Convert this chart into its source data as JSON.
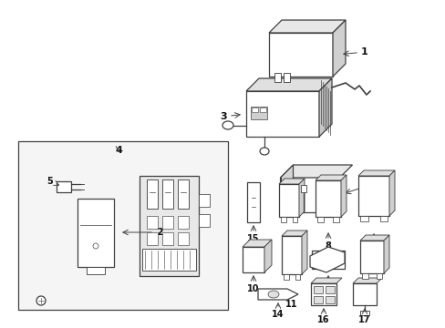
{
  "bg_color": "#ffffff",
  "line_color": "#404040",
  "text_color": "#111111",
  "lw": 0.9
}
